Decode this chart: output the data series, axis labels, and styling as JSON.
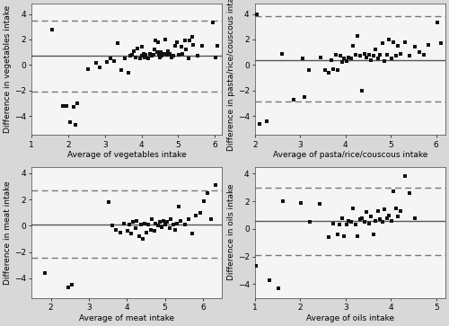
{
  "plots": [
    {
      "xlabel": "Average of vegetables intake",
      "ylabel": "Difference in vegetables intake",
      "xlim": [
        1,
        6.2
      ],
      "ylim": [
        -5.5,
        4.8
      ],
      "xticks": [
        1,
        2,
        3,
        4,
        5,
        6
      ],
      "yticks": [
        -4,
        -2,
        0,
        2,
        4
      ],
      "mean_line": 0.7,
      "upper_loa": 3.5,
      "lower_loa": -2.1,
      "scatter_x": [
        1.55,
        1.85,
        1.95,
        2.05,
        2.15,
        2.2,
        2.25,
        2.55,
        2.75,
        2.85,
        3.05,
        3.15,
        3.25,
        3.35,
        3.45,
        3.55,
        3.65,
        3.7,
        3.75,
        3.8,
        3.85,
        3.9,
        3.95,
        4.0,
        4.02,
        4.05,
        4.08,
        4.12,
        4.18,
        4.22,
        4.28,
        4.32,
        4.36,
        4.38,
        4.42,
        4.44,
        4.48,
        4.5,
        4.52,
        4.56,
        4.62,
        4.66,
        4.7,
        4.72,
        4.76,
        4.82,
        4.88,
        4.92,
        4.96,
        5.02,
        5.08,
        5.12,
        5.18,
        5.22,
        5.28,
        5.32,
        5.38,
        5.42,
        5.52,
        5.65,
        5.95,
        6.02,
        6.08
      ],
      "scatter_y": [
        2.8,
        -3.2,
        -3.2,
        -4.5,
        -3.3,
        -4.7,
        -3.0,
        -0.3,
        0.15,
        -0.2,
        0.2,
        0.5,
        0.3,
        1.7,
        -0.4,
        0.5,
        -0.6,
        0.7,
        0.8,
        1.1,
        0.6,
        1.3,
        0.5,
        1.4,
        0.7,
        0.9,
        0.6,
        0.8,
        0.5,
        0.9,
        0.7,
        0.8,
        1.2,
        1.9,
        1.0,
        1.8,
        0.8,
        0.6,
        1.0,
        0.7,
        0.9,
        2.0,
        0.8,
        1.1,
        0.9,
        0.6,
        0.7,
        1.5,
        1.8,
        0.8,
        1.4,
        0.9,
        1.9,
        1.2,
        0.5,
        1.9,
        2.2,
        1.6,
        0.7,
        1.5,
        3.3,
        0.6,
        1.5
      ]
    },
    {
      "xlabel": "Average of pasta/rice/couscous intake",
      "ylabel": "Difference in pasta/rice/couscous intake",
      "xlim": [
        2,
        6.2
      ],
      "ylim": [
        -5.5,
        4.8
      ],
      "xticks": [
        2,
        3,
        4,
        5,
        6
      ],
      "yticks": [
        -4,
        -2,
        0,
        2,
        4
      ],
      "mean_line": 0.4,
      "upper_loa": 3.8,
      "lower_loa": -2.9,
      "scatter_x": [
        2.05,
        2.1,
        2.25,
        2.6,
        2.85,
        3.05,
        3.1,
        3.2,
        3.45,
        3.55,
        3.62,
        3.68,
        3.72,
        3.78,
        3.82,
        3.88,
        3.92,
        3.96,
        4.02,
        4.06,
        4.12,
        4.16,
        4.22,
        4.26,
        4.32,
        4.36,
        4.42,
        4.46,
        4.52,
        4.56,
        4.62,
        4.66,
        4.72,
        4.76,
        4.82,
        4.86,
        4.92,
        4.96,
        5.02,
        5.06,
        5.12,
        5.16,
        5.22,
        5.32,
        5.42,
        5.52,
        5.62,
        5.72,
        5.82,
        6.02,
        6.1
      ],
      "scatter_y": [
        4.0,
        -4.6,
        -4.4,
        0.9,
        -2.7,
        0.5,
        -2.5,
        -0.4,
        0.6,
        -0.4,
        -0.6,
        0.4,
        -0.3,
        0.8,
        -0.4,
        0.7,
        0.2,
        0.5,
        0.3,
        0.6,
        0.5,
        1.5,
        0.8,
        2.3,
        0.7,
        -2.0,
        0.9,
        0.6,
        0.8,
        0.4,
        0.7,
        1.2,
        0.5,
        0.8,
        1.7,
        0.3,
        0.8,
        2.0,
        0.5,
        1.8,
        0.7,
        1.5,
        0.9,
        1.8,
        0.7,
        1.4,
        1.0,
        0.8,
        1.6,
        3.3,
        1.7
      ]
    },
    {
      "xlabel": "Average of meat intake",
      "ylabel": "Difference in meat intake",
      "xlim": [
        1.5,
        6.5
      ],
      "ylim": [
        -5.5,
        4.5
      ],
      "xticks": [
        2,
        3,
        4,
        5,
        6
      ],
      "yticks": [
        -4,
        -2,
        0,
        2,
        4
      ],
      "mean_line": 0.1,
      "upper_loa": 2.7,
      "lower_loa": -2.4,
      "scatter_x": [
        1.85,
        2.45,
        2.55,
        3.52,
        3.62,
        3.72,
        3.82,
        3.92,
        4.02,
        4.06,
        4.12,
        4.16,
        4.22,
        4.26,
        4.32,
        4.36,
        4.42,
        4.46,
        4.52,
        4.56,
        4.62,
        4.66,
        4.72,
        4.76,
        4.82,
        4.86,
        4.92,
        4.96,
        5.02,
        5.06,
        5.12,
        5.16,
        5.22,
        5.26,
        5.32,
        5.36,
        5.42,
        5.52,
        5.62,
        5.72,
        5.82,
        5.92,
        6.02,
        6.12,
        6.22,
        6.32
      ],
      "scatter_y": [
        -3.6,
        -4.7,
        -4.5,
        1.8,
        0.0,
        -0.3,
        -0.5,
        0.2,
        -0.4,
        0.1,
        -0.6,
        0.3,
        -0.2,
        0.4,
        -0.8,
        0.1,
        -1.0,
        0.2,
        -0.5,
        0.1,
        -0.3,
        0.5,
        -0.4,
        0.2,
        0.0,
        0.3,
        -0.1,
        0.4,
        0.1,
        0.3,
        -0.2,
        0.5,
        0.1,
        -0.3,
        0.2,
        1.5,
        0.4,
        0.1,
        0.5,
        -0.6,
        0.8,
        1.0,
        1.9,
        2.5,
        0.5,
        3.1
      ]
    },
    {
      "xlabel": "Average of oils intake",
      "ylabel": "Difference in oils intake",
      "xlim": [
        1,
        5.2
      ],
      "ylim": [
        -5.0,
        4.5
      ],
      "xticks": [
        1,
        2,
        3,
        4,
        5
      ],
      "yticks": [
        -4,
        -2,
        0,
        2,
        4
      ],
      "mean_line": 0.6,
      "upper_loa": 3.0,
      "lower_loa": -1.9,
      "scatter_x": [
        1.02,
        1.32,
        1.52,
        1.62,
        2.02,
        2.22,
        2.42,
        2.62,
        2.72,
        2.82,
        2.86,
        2.92,
        2.96,
        3.02,
        3.06,
        3.12,
        3.16,
        3.22,
        3.26,
        3.32,
        3.36,
        3.42,
        3.46,
        3.52,
        3.56,
        3.62,
        3.66,
        3.72,
        3.76,
        3.82,
        3.86,
        3.92,
        3.96,
        4.02,
        4.06,
        4.12,
        4.16,
        4.22,
        4.32,
        4.42,
        4.52
      ],
      "scatter_y": [
        -2.7,
        -3.7,
        -4.3,
        2.0,
        1.9,
        0.5,
        1.8,
        -0.6,
        0.4,
        -0.4,
        0.3,
        0.8,
        -0.5,
        0.3,
        0.6,
        0.5,
        1.5,
        0.3,
        -0.5,
        0.7,
        0.8,
        0.5,
        1.2,
        0.4,
        0.9,
        -0.4,
        0.6,
        1.3,
        0.7,
        0.5,
        1.4,
        0.8,
        1.0,
        0.6,
        2.7,
        1.5,
        0.9,
        1.3,
        3.8,
        2.6,
        0.8
      ]
    }
  ],
  "scatter_color": "#111111",
  "scatter_marker": "s",
  "scatter_size": 5,
  "mean_line_color": "#555555",
  "loa_line_color": "#777777",
  "loa_line_style": "--",
  "mean_line_style": "-",
  "line_width": 1.0,
  "font_size": 6.5,
  "label_font_size": 6.5,
  "tick_label_size": 6.5,
  "background_color": "#d8d8d8",
  "plot_background": "#f5f5f5"
}
